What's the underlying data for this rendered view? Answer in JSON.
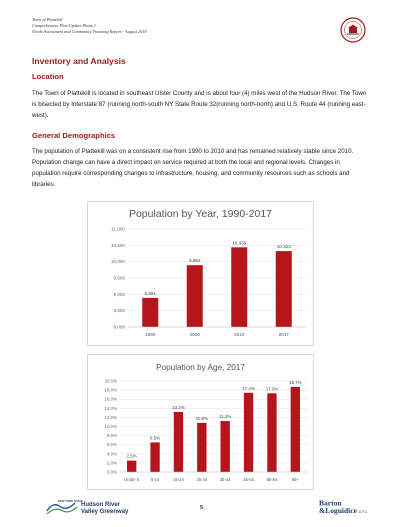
{
  "header": {
    "line1": "Town of Plattekill",
    "line2": "Comprehensive Plan Update Phase I",
    "line3": "Needs Assessment and Community Visioning Report - August 2019"
  },
  "section_title": "Inventory and Analysis",
  "location": {
    "heading": "Location",
    "text": "The Town of Plattekill is located in southeast Ulster County and is about four (4) miles west of the Hudson River. The Town is bisected by Interstate 87 (running north-south NY State Route 32(running north-north) and U.S. Route 44 (running east-west)."
  },
  "demographics": {
    "heading": "General Demographics",
    "text": "The population of Plattekill was on a consistent rise from 1990 to 2010 and has remained relatively stable since 2010. Population change can have a direct impact on service required at both the local and regional levels. Changes in population require corresponding changes to infrastructure, housing, and community resources such as schools and libraries."
  },
  "colors": {
    "accent": "#9b1c20",
    "bar": "#b4161b"
  },
  "chart_data": [
    {
      "type": "bar",
      "title": "Population by Year, 1990-2017",
      "categories": [
        "1990",
        "2000",
        "2010",
        "2017"
      ],
      "values": [
        8891,
        9892,
        10439,
        10323
      ],
      "value_labels": [
        "8,891",
        "9,892",
        "10,439",
        "10,323"
      ],
      "ylim": [
        8000,
        11000
      ],
      "yticks": [
        "8,000",
        "8,500",
        "9,000",
        "9,500",
        "10,000",
        "10,500",
        "11,000"
      ],
      "ytick_values": [
        8000,
        8500,
        9000,
        9500,
        10000,
        10500,
        11000
      ],
      "grid": true
    },
    {
      "type": "bar",
      "title": "Population by Age, 2017",
      "categories": [
        "Under 5",
        "5-14",
        "15-24",
        "25-34",
        "35-44",
        "45-54",
        "55-64",
        "65+"
      ],
      "values": [
        2.5,
        6.5,
        13.2,
        10.8,
        11.2,
        17.4,
        17.3,
        18.7
      ],
      "value_labels": [
        "2.5%",
        "6.5%",
        "13.2%",
        "10.8%",
        "11.2%",
        "17.4%",
        "17.3%",
        "18.7%"
      ],
      "ylim": [
        0,
        20
      ],
      "yticks": [
        "0.0%",
        "2.0%",
        "4.0%",
        "6.0%",
        "8.0%",
        "10.0%",
        "12.0%",
        "14.0%",
        "16.0%",
        "18.0%",
        "20.0%"
      ],
      "ytick_values": [
        0,
        2,
        4,
        6,
        8,
        10,
        12,
        14,
        16,
        18,
        20
      ],
      "grid": true
    }
  ],
  "footer": {
    "left_logo_small": "NEW YORK STATE",
    "left_logo_line1": "Hudson River",
    "left_logo_line2": "Valley Greenway",
    "page_number": "5",
    "right_logo_line1": "Barton",
    "right_logo_line2": "&Loguidice",
    "right_logo_suffix": "D.P.C."
  }
}
